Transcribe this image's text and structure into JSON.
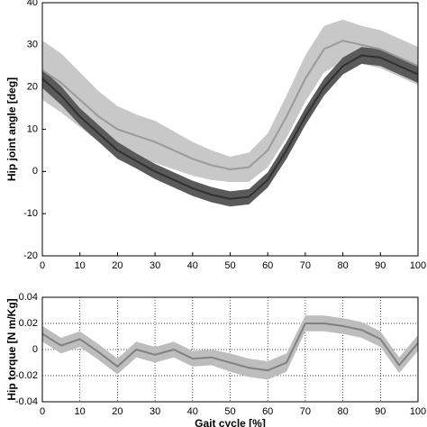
{
  "chart_data": [
    {
      "type": "line",
      "ylabel": "Hip joint angle [deg]",
      "x": [
        0,
        5,
        10,
        15,
        20,
        25,
        30,
        35,
        40,
        45,
        50,
        55,
        60,
        65,
        70,
        75,
        80,
        85,
        90,
        95,
        100
      ],
      "xlim": [
        0,
        100
      ],
      "xticks": [
        0,
        10,
        20,
        30,
        40,
        50,
        60,
        70,
        80,
        90,
        100
      ],
      "ylim": [
        -20,
        40
      ],
      "yticks": [
        -20,
        -10,
        0,
        10,
        20,
        30,
        40
      ],
      "grid": false,
      "series": [
        {
          "color": "#9a9a9a",
          "band_color": "#c8c8c8",
          "values": [
            24,
            21,
            17,
            13,
            10,
            8.5,
            7,
            5,
            3,
            1.5,
            0.5,
            1,
            5,
            13,
            22,
            29,
            31,
            30,
            29,
            27,
            25
          ],
          "errors": [
            7,
            7,
            6.5,
            6,
            5.5,
            5,
            5,
            4.5,
            4,
            3.5,
            3,
            3.5,
            4,
            5,
            5.5,
            5.5,
            5,
            4.5,
            4.5,
            4.5,
            4.5
          ]
        },
        {
          "color": "#303030",
          "band_color": "#5a5a5a",
          "values": [
            22,
            18,
            13,
            9,
            5,
            2.5,
            0,
            -2,
            -4,
            -5.5,
            -6.5,
            -6,
            -2,
            5,
            13,
            20,
            25,
            27.5,
            27,
            25,
            23
          ],
          "errors": [
            2.2,
            2.2,
            2,
            2,
            2,
            1.8,
            1.8,
            1.8,
            1.8,
            1.8,
            1.8,
            1.8,
            1.8,
            2,
            2,
            2,
            2,
            2,
            2,
            2,
            2
          ]
        }
      ]
    },
    {
      "type": "line",
      "ylabel": "Hip torque [N m/Kg]",
      "xlabel": "Gait cycle [%]",
      "x": [
        0,
        5,
        10,
        15,
        20,
        25,
        30,
        35,
        40,
        45,
        50,
        55,
        60,
        65,
        70,
        75,
        80,
        85,
        90,
        95,
        100
      ],
      "xlim": [
        0,
        100
      ],
      "xticks": [
        0,
        10,
        20,
        30,
        40,
        50,
        60,
        70,
        80,
        90,
        100
      ],
      "ylim": [
        -0.04,
        0.04
      ],
      "yticks": [
        -0.04,
        -0.02,
        0,
        0.02,
        0.04
      ],
      "grid": true,
      "series": [
        {
          "color": "#808080",
          "band_color": "#bdbdbd",
          "values": [
            0.012,
            0.003,
            0.008,
            -0.002,
            -0.013,
            0,
            -0.004,
            0,
            -0.007,
            -0.006,
            -0.01,
            -0.014,
            -0.016,
            -0.01,
            0.02,
            0.02,
            0.018,
            0.015,
            0.008,
            -0.012,
            0.005
          ],
          "errors": [
            0.006,
            0.006,
            0.006,
            0.006,
            0.006,
            0.006,
            0.006,
            0.006,
            0.006,
            0.006,
            0.007,
            0.007,
            0.007,
            0.007,
            0.006,
            0.006,
            0.006,
            0.006,
            0.006,
            0.006,
            0.006
          ]
        }
      ]
    }
  ]
}
